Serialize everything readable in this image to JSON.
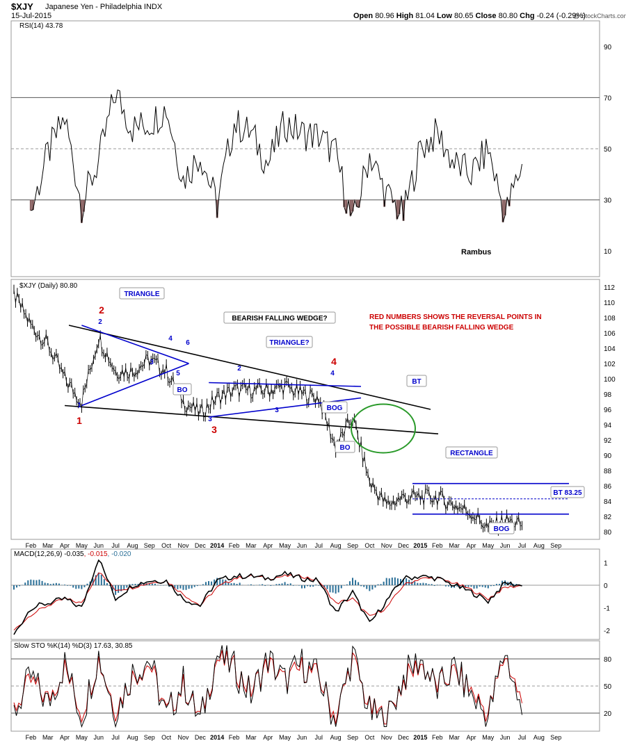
{
  "header": {
    "symbol": "$XJY",
    "name": "Japanese Yen - Philadelphia INDX",
    "date": "15-Jul-2015",
    "open_label": "Open",
    "open": "80.96",
    "high_label": "High",
    "high": "81.04",
    "low_label": "Low",
    "low": "80.65",
    "close_label": "Close",
    "close": "80.80",
    "chg_label": "Chg",
    "chg": "-0.24 (-0.29%)",
    "watermark": "@ StockCharts.com"
  },
  "colors": {
    "price": "#000000",
    "rsi_fill": "#8b6464",
    "pattern_blue": "#0000cc",
    "annotation_red": "#cc0000",
    "circle_green": "#2a9a2a",
    "macd_hist": "#2a6f97",
    "signal_red": "#cc0000"
  },
  "chart_data": [
    {
      "type": "line",
      "panel": "rsi",
      "legend": "RSI(14) 43.78",
      "ylim": [
        0,
        100
      ],
      "yticks": [
        10,
        30,
        50,
        70,
        90
      ],
      "reference_lines": [
        30,
        50,
        70
      ],
      "author": "Rambus",
      "x": [
        "2013-02",
        "2013-03",
        "2013-04",
        "2013-05",
        "2013-06",
        "2013-07",
        "2013-08",
        "2013-09",
        "2013-10",
        "2013-11",
        "2013-12",
        "2014-01",
        "2014-02",
        "2014-03",
        "2014-04",
        "2014-05",
        "2014-06",
        "2014-07",
        "2014-08",
        "2014-09",
        "2014-10",
        "2014-11",
        "2014-12",
        "2015-01",
        "2015-02",
        "2015-03",
        "2015-04",
        "2015-05",
        "2015-06",
        "2015-07"
      ],
      "values": [
        25,
        48,
        62,
        28,
        45,
        72,
        58,
        60,
        66,
        38,
        48,
        28,
        60,
        56,
        44,
        60,
        56,
        55,
        48,
        20,
        48,
        32,
        24,
        50,
        56,
        44,
        40,
        50,
        24,
        44
      ]
    },
    {
      "type": "line",
      "panel": "price",
      "legend": "$XJY (Daily) 80.80",
      "ylim": [
        79,
        113
      ],
      "yticks": [
        80,
        82,
        84,
        86,
        88,
        90,
        92,
        94,
        96,
        98,
        100,
        102,
        104,
        106,
        108,
        110,
        112
      ],
      "xticks": [
        "Feb",
        "Mar",
        "Apr",
        "May",
        "Jun",
        "Jul",
        "Aug",
        "Sep",
        "Oct",
        "Nov",
        "Dec",
        "2014",
        "Feb",
        "Mar",
        "Apr",
        "May",
        "Jun",
        "Jul",
        "Aug",
        "Sep",
        "Oct",
        "Nov",
        "Dec",
        "2015",
        "Feb",
        "Mar",
        "Apr",
        "May",
        "Jun",
        "Jul",
        "Aug",
        "Sep"
      ],
      "x": [
        "2013-01",
        "2013-02",
        "2013-03",
        "2013-04",
        "2013-05",
        "2013-06",
        "2013-07",
        "2013-08",
        "2013-09",
        "2013-10",
        "2013-11",
        "2013-12",
        "2014-01",
        "2014-02",
        "2014-03",
        "2014-04",
        "2014-05",
        "2014-06",
        "2014-07",
        "2014-08",
        "2014-09",
        "2014-10",
        "2014-11",
        "2014-12",
        "2015-01",
        "2015-02",
        "2015-03",
        "2015-04",
        "2015-05",
        "2015-06",
        "2015-07"
      ],
      "values": [
        111,
        107,
        104.5,
        100,
        97,
        105.5,
        101,
        101,
        102.5,
        101,
        97,
        95.5,
        97.5,
        98.5,
        98.5,
        98.5,
        99,
        98,
        97.5,
        91,
        95,
        86.5,
        83.5,
        84.5,
        84.5,
        84.5,
        83.5,
        82.5,
        80.5,
        81.5,
        80.8
      ],
      "annotations": {
        "reversal_numbers": [
          "1",
          "2",
          "3",
          "4"
        ],
        "wedge_points": [
          "1",
          "2",
          "3",
          "4"
        ],
        "triangle_points": [
          "1",
          "2",
          "3",
          "4",
          "5",
          "6"
        ],
        "triangle2_points": [
          "1",
          "2",
          "3",
          "4"
        ],
        "labels": {
          "triangle": "TRIANGLE",
          "bearish_wedge": "BEARISH FALLING WEDGE?",
          "triangle2": "TRIANGLE?",
          "note_line1": "RED NUMBERS SHOWS THE REVERSAL POINTS IN",
          "note_line2": "THE POSSIBLE BEARISH FALLING WEDGE",
          "bo1": "BO",
          "bog1": "BOG",
          "bo2": "BO",
          "bt1": "BT",
          "rectangle": "RECTANGLE",
          "bt2": "BT 83.25",
          "bog2": "BOG"
        }
      }
    },
    {
      "type": "line",
      "panel": "macd",
      "legend": "MACD(12,26,9)",
      "legend_values": [
        "-0.035",
        "-0.015",
        "-0.020"
      ],
      "ylim": [
        -2.4,
        1.6
      ],
      "yticks": [
        -2,
        -1,
        0,
        1
      ],
      "x": [
        "2013-01",
        "2013-02",
        "2013-03",
        "2013-04",
        "2013-05",
        "2013-06",
        "2013-07",
        "2013-08",
        "2013-09",
        "2013-10",
        "2013-11",
        "2013-12",
        "2014-01",
        "2014-02",
        "2014-03",
        "2014-04",
        "2014-05",
        "2014-06",
        "2014-07",
        "2014-08",
        "2014-09",
        "2014-10",
        "2014-11",
        "2014-12",
        "2015-01",
        "2015-02",
        "2015-03",
        "2015-04",
        "2015-05",
        "2015-06",
        "2015-07"
      ],
      "series": [
        {
          "values": [
            -2.2,
            -1.0,
            -0.8,
            -0.6,
            -1.0,
            1.2,
            -0.6,
            0.0,
            0.2,
            0.2,
            -0.6,
            -0.9,
            0.2,
            0.4,
            0.4,
            0.3,
            0.5,
            0.3,
            0.2,
            -1.2,
            -0.3,
            -1.7,
            -0.7,
            0.3,
            0.4,
            0.3,
            0.0,
            -0.3,
            -0.7,
            0.1,
            -0.03
          ]
        },
        {
          "values": [
            -2.0,
            -1.3,
            -0.9,
            -0.6,
            -0.8,
            0.6,
            -0.2,
            -0.1,
            0.1,
            0.2,
            -0.4,
            -0.9,
            -0.1,
            0.3,
            0.4,
            0.3,
            0.4,
            0.4,
            0.2,
            -0.8,
            -0.6,
            -1.4,
            -1.0,
            0.0,
            0.3,
            0.3,
            0.1,
            -0.2,
            -0.6,
            -0.1,
            -0.02
          ]
        }
      ]
    },
    {
      "type": "line",
      "panel": "stochastic",
      "legend": "Slow STO %K(14) %D(3) 17.63, 30.85",
      "ylim": [
        0,
        100
      ],
      "yticks": [
        20,
        50,
        80
      ],
      "reference_lines": [
        20,
        50,
        80
      ],
      "xticks": [
        "Feb",
        "Mar",
        "Apr",
        "May",
        "Jun",
        "Jul",
        "Aug",
        "Sep",
        "Oct",
        "Nov",
        "Dec",
        "2014",
        "Feb",
        "Mar",
        "Apr",
        "May",
        "Jun",
        "Jul",
        "Aug",
        "Sep",
        "Oct",
        "Nov",
        "Dec",
        "2015",
        "Feb",
        "Mar",
        "Apr",
        "May",
        "Jun",
        "Jul",
        "Aug",
        "Sep"
      ],
      "x": [
        "2013-01",
        "2013-02",
        "2013-03",
        "2013-04",
        "2013-05",
        "2013-06",
        "2013-07",
        "2013-08",
        "2013-09",
        "2013-10",
        "2013-11",
        "2013-12",
        "2014-01",
        "2014-02",
        "2014-03",
        "2014-04",
        "2014-05",
        "2014-06",
        "2014-07",
        "2014-08",
        "2014-09",
        "2014-10",
        "2014-11",
        "2014-12",
        "2015-01",
        "2015-02",
        "2015-03",
        "2015-04",
        "2015-05",
        "2015-06",
        "2015-07"
      ],
      "series": [
        {
          "values": [
            20,
            60,
            30,
            75,
            15,
            85,
            20,
            65,
            80,
            15,
            55,
            10,
            85,
            70,
            40,
            80,
            55,
            75,
            60,
            10,
            85,
            20,
            10,
            60,
            80,
            45,
            70,
            40,
            15,
            90,
            18
          ]
        },
        {
          "values": [
            25,
            55,
            35,
            70,
            20,
            80,
            25,
            60,
            75,
            20,
            50,
            15,
            80,
            70,
            45,
            75,
            55,
            70,
            60,
            15,
            80,
            25,
            15,
            55,
            75,
            50,
            65,
            45,
            20,
            85,
            31
          ]
        }
      ]
    }
  ]
}
